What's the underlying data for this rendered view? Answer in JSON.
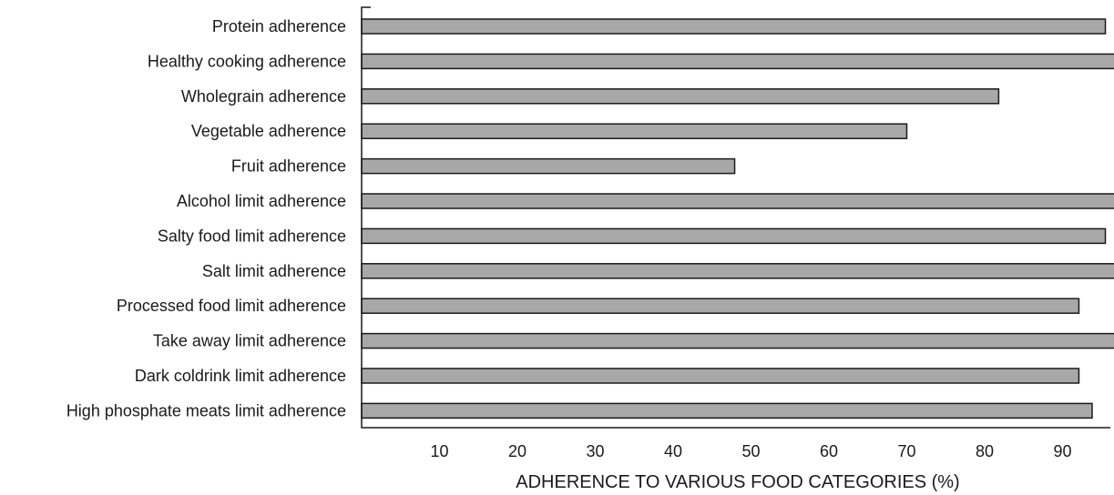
{
  "chart_data": {
    "type": "bar",
    "orientation": "horizontal",
    "categories": [
      "Protein adherence",
      "Healthy cooking adherence",
      "Wholegrain adherence",
      "Vegetable adherence",
      "Fruit adherence",
      "Alcohol limit adherence",
      "Salty food limit adherence",
      "Salt limit adherence",
      "Processed food limit adherence",
      "Take away limit adherence",
      "Dark coldrink limit adherence",
      "High phosphate meats limit adherence"
    ],
    "values": [
      95.5,
      97.2,
      81.8,
      70.0,
      47.9,
      99.0,
      95.5,
      97.2,
      92.1,
      97.2,
      92.1,
      93.8
    ],
    "xlabel": "ADHERENCE TO VARIOUS FOOD CATEGORIES (%)",
    "ylabel": "",
    "title": "",
    "xlim": [
      0,
      99
    ],
    "xticks": [
      10,
      20,
      30,
      40,
      50,
      60,
      70,
      80,
      90
    ],
    "grid": false,
    "bar_color": "#a8a8a8",
    "edge_color": "#1a1a1a"
  }
}
